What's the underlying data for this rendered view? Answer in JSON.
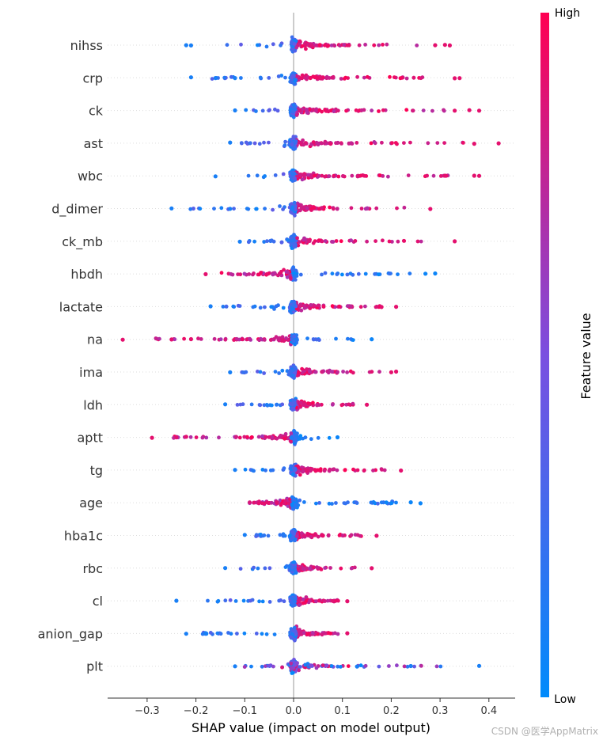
{
  "chart_data": {
    "type": "scatter",
    "subtype": "shap-beeswarm-summary",
    "xlabel": "SHAP value (impact on model output)",
    "xlim": [
      -0.385,
      0.455
    ],
    "xticks": [
      -0.3,
      -0.2,
      -0.1,
      0.0,
      0.1,
      0.2,
      0.3,
      0.4
    ],
    "xtick_labels": [
      "−0.3",
      "−0.2",
      "−0.1",
      "0.0",
      "0.1",
      "0.2",
      "0.3",
      "0.4"
    ],
    "colorbar": {
      "title": "Feature value",
      "high_label": "High",
      "low_label": "Low",
      "low_color": "#008bfb",
      "high_color": "#ff0052"
    },
    "features": [
      {
        "name": "nihss",
        "min": -0.22,
        "max": 0.32,
        "direction": "positive",
        "outliers": [
          -0.22,
          -0.21,
          0.29,
          0.31,
          0.32
        ]
      },
      {
        "name": "crp",
        "min": -0.21,
        "max": 0.34,
        "direction": "positive",
        "outliers": [
          -0.21,
          -0.16,
          -0.12,
          0.33,
          0.34
        ]
      },
      {
        "name": "ck",
        "min": -0.12,
        "max": 0.38,
        "direction": "positive",
        "outliers": [
          -0.12,
          0.33,
          0.36,
          0.38
        ]
      },
      {
        "name": "ast",
        "min": -0.13,
        "max": 0.42,
        "direction": "positive",
        "outliers": [
          -0.13,
          0.37,
          0.42
        ]
      },
      {
        "name": "wbc",
        "min": -0.16,
        "max": 0.38,
        "direction": "positive",
        "outliers": [
          -0.16,
          0.31,
          0.37,
          0.38
        ]
      },
      {
        "name": "d_dimer",
        "min": -0.25,
        "max": 0.28,
        "direction": "positive",
        "outliers": [
          -0.25,
          -0.13,
          0.28
        ]
      },
      {
        "name": "ck_mb",
        "min": -0.11,
        "max": 0.33,
        "direction": "positive",
        "outliers": [
          -0.11,
          0.33
        ]
      },
      {
        "name": "hbdh",
        "min": -0.18,
        "max": 0.29,
        "direction": "negative",
        "outliers": [
          -0.18,
          0.27,
          0.29
        ]
      },
      {
        "name": "lactate",
        "min": -0.17,
        "max": 0.21,
        "direction": "positive",
        "outliers": [
          -0.17,
          0.18,
          0.21
        ]
      },
      {
        "name": "na",
        "min": -0.35,
        "max": 0.16,
        "direction": "negative",
        "outliers": [
          -0.35,
          -0.25,
          -0.21,
          0.16
        ]
      },
      {
        "name": "ima",
        "min": -0.13,
        "max": 0.21,
        "direction": "positive",
        "outliers": [
          -0.13,
          0.2,
          0.21
        ]
      },
      {
        "name": "ldh",
        "min": -0.14,
        "max": 0.15,
        "direction": "positive",
        "outliers": [
          -0.14,
          0.15
        ]
      },
      {
        "name": "aptt",
        "min": -0.29,
        "max": 0.09,
        "direction": "negative",
        "outliers": [
          -0.29,
          -0.24,
          -0.22,
          0.09
        ]
      },
      {
        "name": "tg",
        "min": -0.12,
        "max": 0.22,
        "direction": "positive",
        "outliers": [
          -0.12,
          0.22
        ]
      },
      {
        "name": "age",
        "min": -0.09,
        "max": 0.26,
        "direction": "negative",
        "outliers": [
          0.19,
          0.24,
          0.26
        ]
      },
      {
        "name": "hba1c",
        "min": -0.1,
        "max": 0.17,
        "direction": "positive",
        "outliers": [
          -0.1,
          0.17
        ]
      },
      {
        "name": "rbc",
        "min": -0.14,
        "max": 0.16,
        "direction": "positive",
        "outliers": [
          -0.14,
          0.16
        ]
      },
      {
        "name": "cl",
        "min": -0.24,
        "max": 0.11,
        "direction": "positive",
        "outliers": [
          -0.24,
          0.11
        ]
      },
      {
        "name": "anion_gap",
        "min": -0.22,
        "max": 0.11,
        "direction": "positive",
        "outliers": [
          -0.22,
          -0.18,
          0.11
        ]
      },
      {
        "name": "plt",
        "min": -0.12,
        "max": 0.38,
        "direction": "mixed",
        "outliers": [
          -0.12,
          0.13,
          0.24,
          0.38
        ]
      }
    ]
  },
  "watermark": "CSDN @医学AppMatrix"
}
